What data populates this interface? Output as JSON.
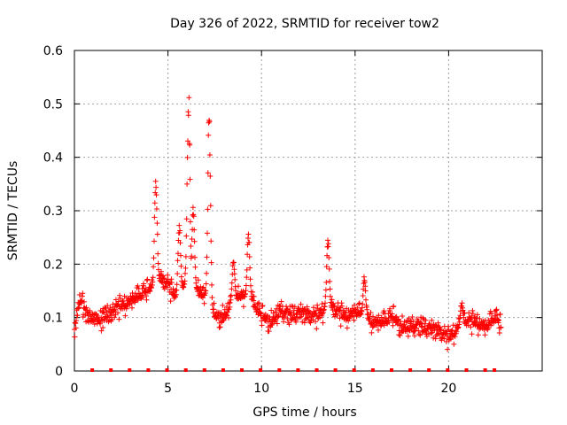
{
  "chart_data": {
    "type": "scatter",
    "title": "Day 326 of 2022, SRMTID for receiver tow2",
    "xlabel": "GPS time / hours",
    "ylabel": "SRMTID / TECUs",
    "xlim": [
      0,
      25
    ],
    "ylim": [
      0,
      0.6
    ],
    "xticks": [
      0,
      5,
      10,
      15,
      20
    ],
    "xtick_labels": [
      "0",
      "5",
      "10",
      "15",
      "20"
    ],
    "yticks": [
      0,
      0.1,
      0.2,
      0.3,
      0.4,
      0.5,
      0.6
    ],
    "ytick_labels": [
      "0",
      "0.1",
      "0.2",
      "0.3",
      "0.4",
      "0.5",
      "0.6"
    ],
    "grid": true,
    "marker": "plus",
    "color": "#ff0000",
    "baseline_markers": {
      "y": 0,
      "x": [
        0.95,
        1.95,
        2.95,
        3.95,
        4.95,
        5.95,
        6.95,
        7.95,
        8.95,
        9.95,
        10.95,
        11.95,
        12.95,
        13.95,
        14.95,
        15.95,
        16.95,
        17.95,
        18.95,
        19.95,
        20.95,
        21.95,
        22.45
      ]
    },
    "series": [
      {
        "name": "SRMTID",
        "trend": {
          "x": [
            0.0,
            0.3,
            0.6,
            1.0,
            1.5,
            2.0,
            2.5,
            3.0,
            3.5,
            4.0,
            4.5,
            5.0,
            5.5,
            6.0,
            6.5,
            7.0,
            7.5,
            8.0,
            8.5,
            9.0,
            9.5,
            10.0,
            10.5,
            11.0,
            11.5,
            12.0,
            12.5,
            13.0,
            13.5,
            14.0,
            14.5,
            15.0,
            15.5,
            16.0,
            16.5,
            17.0,
            17.5,
            18.0,
            18.5,
            19.0,
            19.5,
            20.0,
            20.5,
            21.0,
            21.5,
            22.0,
            22.5,
            22.8
          ],
          "y": [
            0.08,
            0.13,
            0.11,
            0.09,
            0.1,
            0.11,
            0.12,
            0.13,
            0.14,
            0.15,
            0.17,
            0.16,
            0.13,
            0.17,
            0.15,
            0.14,
            0.1,
            0.1,
            0.13,
            0.14,
            0.13,
            0.1,
            0.09,
            0.11,
            0.1,
            0.11,
            0.1,
            0.1,
            0.12,
            0.11,
            0.1,
            0.11,
            0.1,
            0.09,
            0.09,
            0.1,
            0.08,
            0.08,
            0.08,
            0.08,
            0.07,
            0.06,
            0.08,
            0.09,
            0.09,
            0.08,
            0.1,
            0.08
          ]
        },
        "spikes": [
          {
            "x": 4.35,
            "peak": 0.37
          },
          {
            "x": 5.6,
            "peak": 0.29
          },
          {
            "x": 6.1,
            "peak": 0.54
          },
          {
            "x": 6.35,
            "peak": 0.31
          },
          {
            "x": 7.2,
            "peak": 0.5
          },
          {
            "x": 8.5,
            "peak": 0.21
          },
          {
            "x": 9.3,
            "peak": 0.26
          },
          {
            "x": 13.55,
            "peak": 0.25
          },
          {
            "x": 15.5,
            "peak": 0.18
          },
          {
            "x": 20.7,
            "peak": 0.13
          }
        ],
        "time_step_hours": 0.02,
        "spread": 0.028
      }
    ]
  }
}
